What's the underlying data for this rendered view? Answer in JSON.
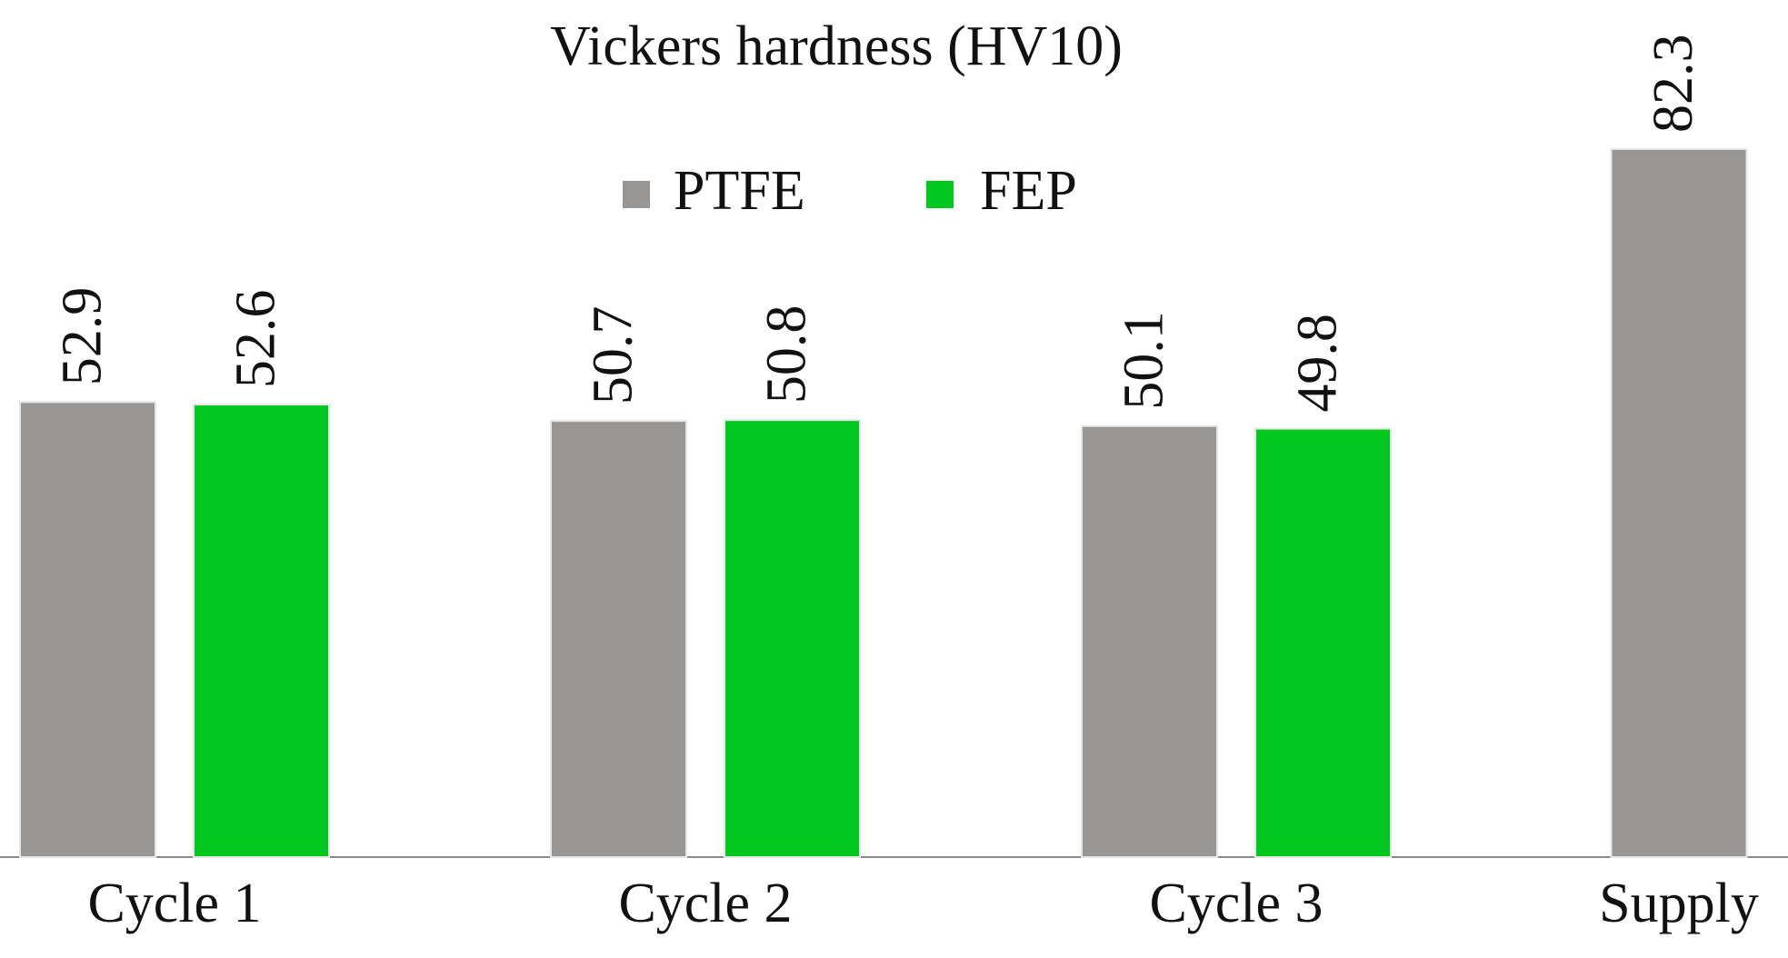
{
  "chart_data": {
    "type": "bar",
    "title": "Vickers hardness (HV10)",
    "categories": [
      "Cycle 1",
      "Cycle 2",
      "Cycle 3",
      "Supply"
    ],
    "series": [
      {
        "name": "PTFE",
        "color": "#979695",
        "values": [
          52.9,
          50.7,
          50.1,
          82.3
        ]
      },
      {
        "name": "FEP",
        "color": "#00c81e",
        "values": [
          52.6,
          50.8,
          49.8,
          null
        ]
      }
    ],
    "legend": "top"
  }
}
